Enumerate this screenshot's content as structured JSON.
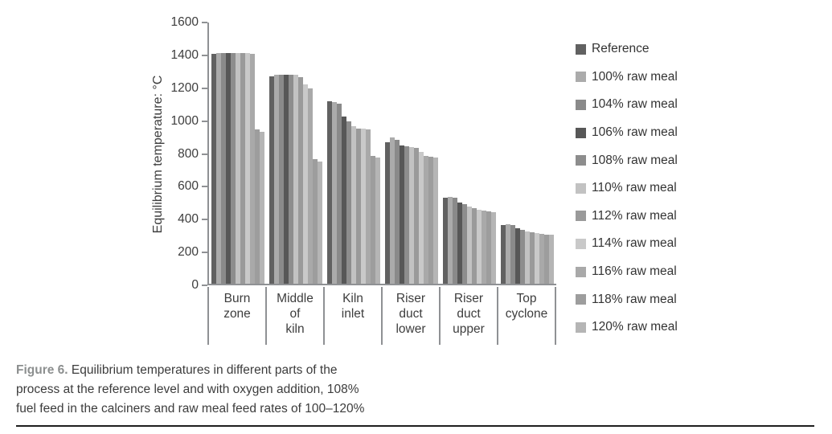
{
  "figure": {
    "caption_label": "Figure 6.",
    "caption_text": "Equilibrium temperatures in different parts of the process at the reference level and with oxygen addition, 108% fuel feed in the calciners and raw meal feed rates of 100–120%"
  },
  "chart_data": {
    "type": "bar",
    "title": "",
    "xlabel": "",
    "ylabel": "Equilibrium temperature: °C",
    "ylim": [
      0,
      1600
    ],
    "yticks": [
      0,
      200,
      400,
      600,
      800,
      1000,
      1200,
      1400,
      1600
    ],
    "grid": false,
    "legend_position": "right",
    "categories": [
      "Burn zone",
      "Middle of kiln",
      "Kiln inlet",
      "Riser duct lower",
      "Riser duct upper",
      "Top cyclone"
    ],
    "series": [
      {
        "name": "Reference",
        "color": "#616161",
        "values": [
          1400,
          1265,
          1110,
          860,
          525,
          355
        ]
      },
      {
        "name": "100% raw meal",
        "color": "#ababab",
        "values": [
          1405,
          1270,
          1105,
          890,
          530,
          360
        ]
      },
      {
        "name": "104% raw meal",
        "color": "#8a8a8a",
        "values": [
          1405,
          1270,
          1095,
          875,
          525,
          355
        ]
      },
      {
        "name": "106% raw meal",
        "color": "#575757",
        "values": [
          1405,
          1270,
          1020,
          840,
          495,
          340
        ]
      },
      {
        "name": "108% raw meal",
        "color": "#8d8d8d",
        "values": [
          1405,
          1270,
          990,
          835,
          485,
          330
        ]
      },
      {
        "name": "110% raw meal",
        "color": "#c2c2c2",
        "values": [
          1405,
          1270,
          960,
          830,
          470,
          320
        ]
      },
      {
        "name": "112% raw meal",
        "color": "#9a9a9a",
        "values": [
          1405,
          1260,
          945,
          825,
          460,
          315
        ]
      },
      {
        "name": "114% raw meal",
        "color": "#c9c9c9",
        "values": [
          1405,
          1215,
          945,
          805,
          450,
          310
        ]
      },
      {
        "name": "116% raw meal",
        "color": "#a9a9a9",
        "values": [
          1400,
          1190,
          940,
          780,
          445,
          305
        ]
      },
      {
        "name": "118% raw meal",
        "color": "#9d9d9d",
        "values": [
          940,
          760,
          780,
          775,
          440,
          300
        ]
      },
      {
        "name": "120% raw meal",
        "color": "#b5b5b5",
        "values": [
          925,
          745,
          770,
          770,
          435,
          300
        ]
      }
    ]
  }
}
